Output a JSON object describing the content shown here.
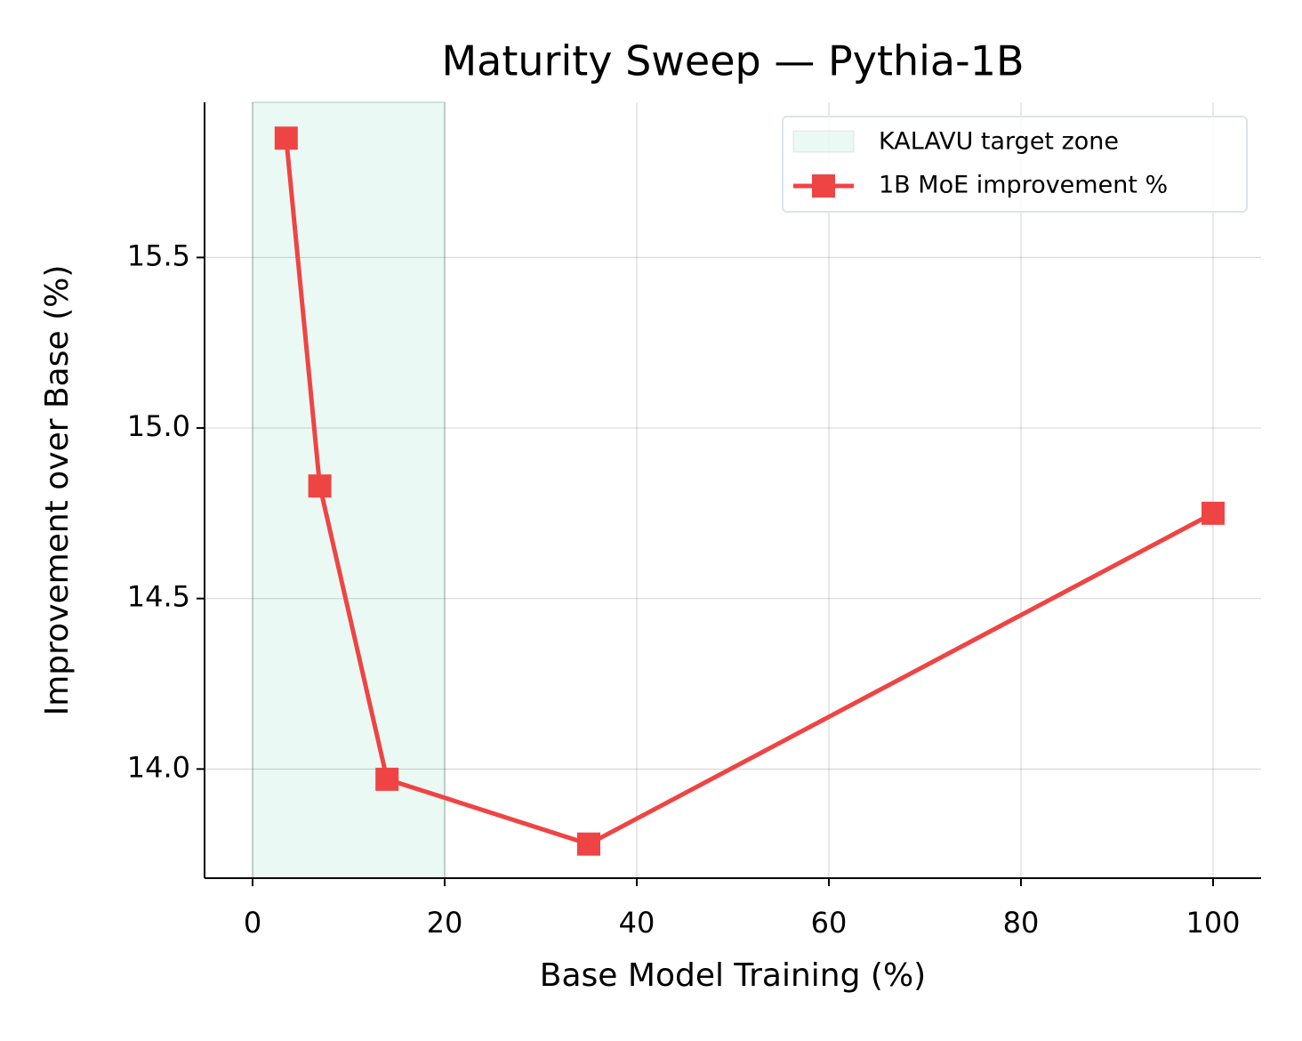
{
  "chart_data": {
    "type": "line",
    "title": "Maturity Sweep — Pythia-1B",
    "x_label": "Base Model Training (%)",
    "y_label": "Improvement over Base (%)",
    "x": [
      3.5,
      7,
      14,
      35,
      100
    ],
    "series": [
      {
        "name": "1B MoE improvement %",
        "color": "#ef4444",
        "values": [
          15.85,
          14.83,
          13.97,
          13.78,
          14.75
        ]
      }
    ],
    "span": {
      "label": "KALAVU target zone",
      "x": [
        0,
        20
      ],
      "color": "#d1f2e6"
    },
    "xlim": [
      -5,
      105
    ],
    "xticks": [
      0,
      20,
      40,
      60,
      80,
      100
    ],
    "ylim": [
      13.68,
      15.955
    ],
    "yticks": [
      {
        "value": 14,
        "label": "14.0"
      },
      14.5,
      {
        "value": 15,
        "label": "15.0"
      },
      15.5
    ],
    "grid": true,
    "legend": "upper right"
  }
}
